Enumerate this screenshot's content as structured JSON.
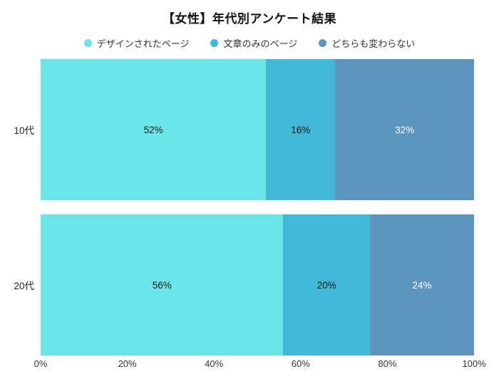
{
  "title": "【女性】年代別アンケート結果",
  "chart_data": {
    "type": "bar",
    "orientation": "horizontal",
    "stacked": true,
    "title": "【女性】年代別アンケート結果",
    "categories": [
      "10代",
      "20代"
    ],
    "series": [
      {
        "name": "デザインされたページ",
        "values": [
          52,
          56
        ],
        "color": "#6CE5E8",
        "label_color": "#1a1a1a"
      },
      {
        "name": "文章のみのページ",
        "values": [
          16,
          20
        ],
        "color": "#41B8D5",
        "label_color": "#1a1a1a"
      },
      {
        "name": "どちらも変わらない",
        "values": [
          32,
          24
        ],
        "color": "#5B95BE",
        "label_color": "#ffffff"
      }
    ],
    "value_suffix": "%",
    "x_ticks": [
      "0%",
      "20%",
      "40%",
      "60%",
      "80%",
      "100%"
    ],
    "xlim": [
      0,
      100
    ],
    "legend_position": "top",
    "grid": false,
    "background_color": "#ffffff"
  }
}
